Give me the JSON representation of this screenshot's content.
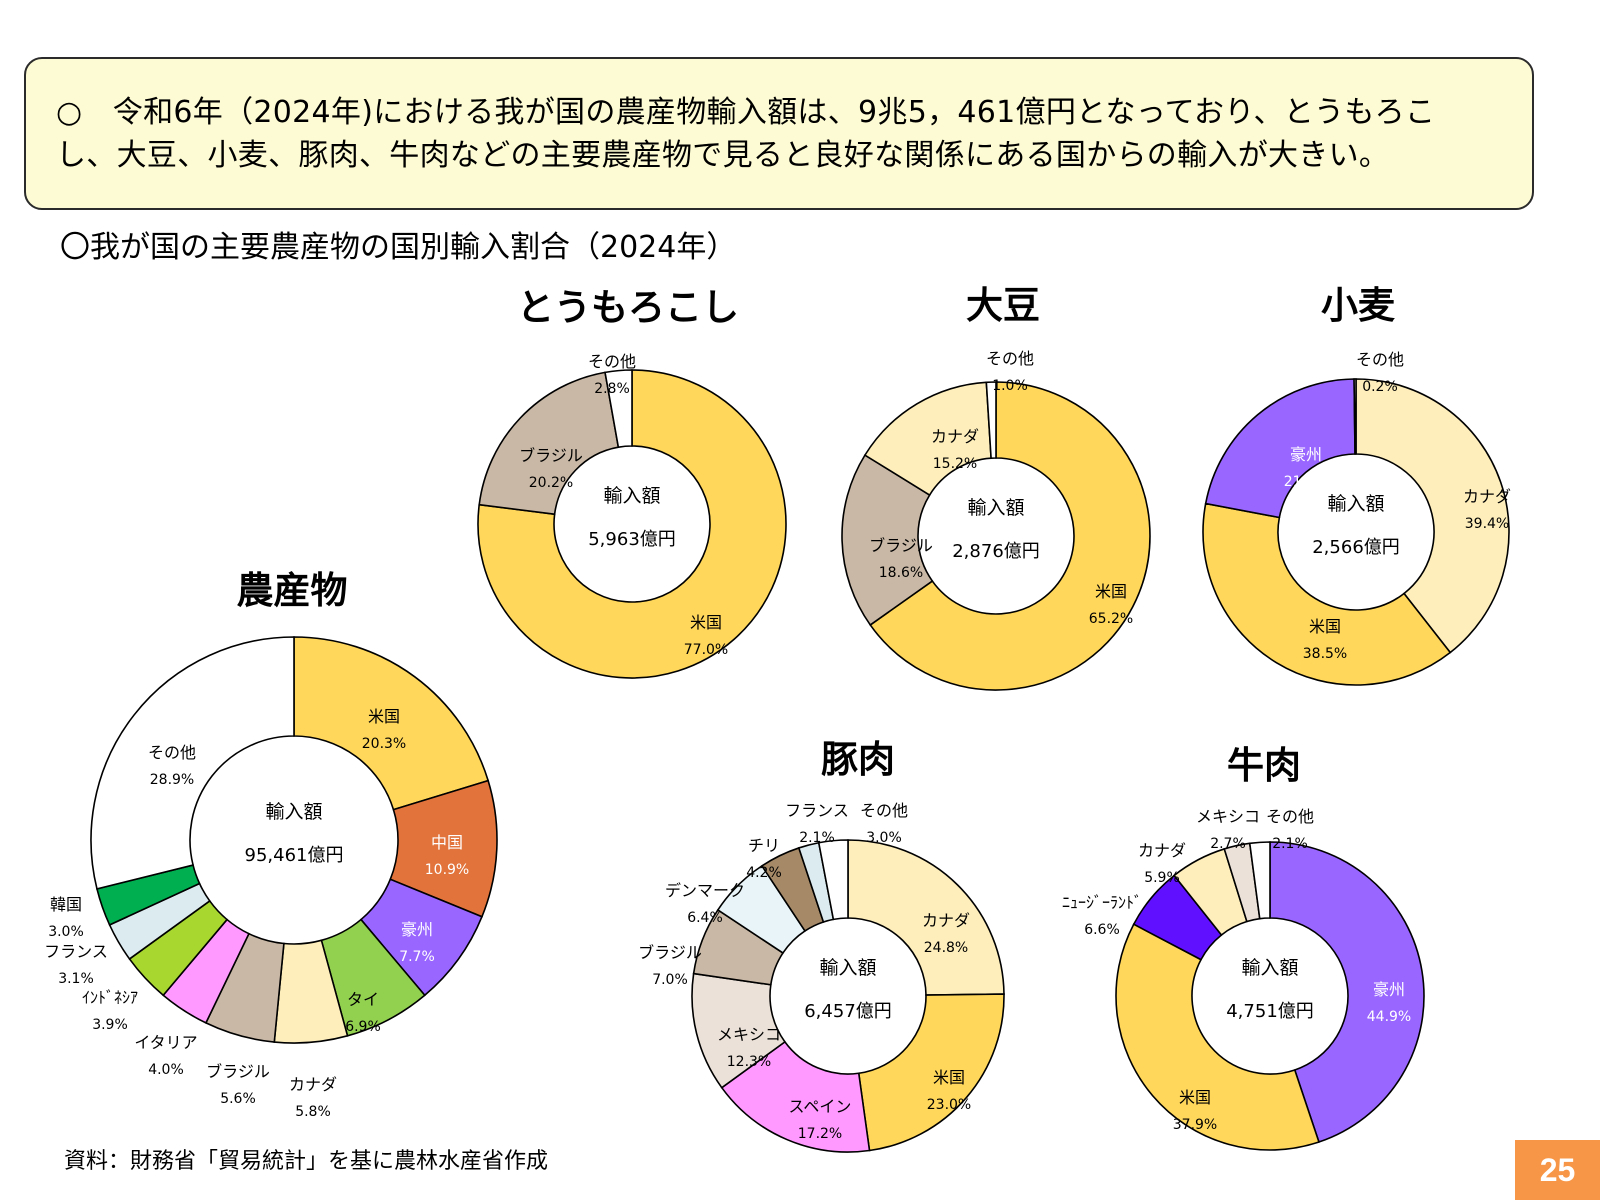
{
  "summary": {
    "line1": "○　令和6年（2024年)における我が国の農産物輸入額は、9兆5，461億円となっており、とうもろこ",
    "line2": "し、大豆、小麦、豚肉、牛肉などの主要農産物で見ると良好な関係にある国からの輸入が大きい。"
  },
  "section_heading": "〇我が国の主要農産物の国別輸入割合（2024年）",
  "source": "資料：財務省「貿易統計」を基に農林水産省作成",
  "page_number": "25",
  "colors": {
    "yellow": "#ffd75a",
    "orange": "#e1733b",
    "purple": "#9966ff",
    "green": "#92d050",
    "light_yellow": "#fdeebb",
    "tan": "#c9b8a5",
    "pink": "#ff99ff",
    "yellow_green": "#a8d830",
    "light_blue": "#dcebf0",
    "dark_green": "#00b050",
    "white": "#ffffff",
    "very_light_blue": "#e8f4f8",
    "brown": "#a68a68",
    "cream": "#ebe1d8",
    "violet": "#6010ff"
  },
  "chart_data": [
    {
      "id": "agri",
      "type": "pie",
      "title": "農産物",
      "center_label": "輸入額",
      "center_value": "95,461億円",
      "slices": [
        {
          "label": "米国",
          "value": 20.3,
          "pct": "20.3%",
          "color": "#ffd75a",
          "light_text": false
        },
        {
          "label": "中国",
          "value": 10.9,
          "pct": "10.9%",
          "color": "#e1733b",
          "light_text": true
        },
        {
          "label": "豪州",
          "value": 7.7,
          "pct": "7.7%",
          "color": "#9966ff",
          "light_text": true
        },
        {
          "label": "タイ",
          "value": 6.9,
          "pct": "6.9%",
          "color": "#92d050",
          "light_text": false
        },
        {
          "label": "カナダ",
          "value": 5.8,
          "pct": "5.8%",
          "color": "#fdeebb",
          "light_text": false
        },
        {
          "label": "ブラジル",
          "value": 5.6,
          "pct": "5.6%",
          "color": "#c9b8a5",
          "light_text": false
        },
        {
          "label": "イタリア",
          "value": 4.0,
          "pct": "4.0%",
          "color": "#ff99ff",
          "light_text": false
        },
        {
          "label": "ｲﾝﾄﾞﾈｼｱ",
          "value": 3.9,
          "pct": "3.9%",
          "color": "#a8d830",
          "light_text": false
        },
        {
          "label": "フランス",
          "value": 3.1,
          "pct": "3.1%",
          "color": "#dcebf0",
          "light_text": false
        },
        {
          "label": "韓国",
          "value": 3.0,
          "pct": "3.0%",
          "color": "#00b050",
          "light_text": false
        },
        {
          "label": "その他",
          "value": 28.9,
          "pct": "28.9%",
          "color": "#ffffff",
          "light_text": false
        }
      ]
    },
    {
      "id": "corn",
      "type": "pie",
      "title": "とうもろこし",
      "center_label": "輸入額",
      "center_value": "5,963億円",
      "slices": [
        {
          "label": "米国",
          "value": 77.0,
          "pct": "77.0%",
          "color": "#ffd75a",
          "light_text": false
        },
        {
          "label": "ブラジル",
          "value": 20.2,
          "pct": "20.2%",
          "color": "#c9b8a5",
          "light_text": false
        },
        {
          "label": "その他",
          "value": 2.8,
          "pct": "2.8%",
          "color": "#ffffff",
          "light_text": false
        }
      ]
    },
    {
      "id": "soy",
      "type": "pie",
      "title": "大豆",
      "center_label": "輸入額",
      "center_value": "2,876億円",
      "slices": [
        {
          "label": "米国",
          "value": 65.2,
          "pct": "65.2%",
          "color": "#ffd75a",
          "light_text": false
        },
        {
          "label": "ブラジル",
          "value": 18.6,
          "pct": "18.6%",
          "color": "#c9b8a5",
          "light_text": false
        },
        {
          "label": "カナダ",
          "value": 15.2,
          "pct": "15.2%",
          "color": "#fdeebb",
          "light_text": false
        },
        {
          "label": "その他",
          "value": 1.0,
          "pct": "1.0%",
          "color": "#ffffff",
          "light_text": false
        }
      ]
    },
    {
      "id": "wheat",
      "type": "pie",
      "title": "小麦",
      "center_label": "輸入額",
      "center_value": "2,566億円",
      "slices": [
        {
          "label": "カナダ",
          "value": 39.4,
          "pct": "39.4%",
          "color": "#fdeebb",
          "light_text": false
        },
        {
          "label": "米国",
          "value": 38.5,
          "pct": "38.5%",
          "color": "#ffd75a",
          "light_text": false
        },
        {
          "label": "豪州",
          "value": 21.8,
          "pct": "21.8%",
          "color": "#9966ff",
          "light_text": true
        },
        {
          "label": "その他",
          "value": 0.2,
          "pct": "0.2%",
          "color": "#ffffff",
          "light_text": false
        }
      ]
    },
    {
      "id": "pork",
      "type": "pie",
      "title": "豚肉",
      "center_label": "輸入額",
      "center_value": "6,457億円",
      "slices": [
        {
          "label": "カナダ",
          "value": 24.8,
          "pct": "24.8%",
          "color": "#fdeebb",
          "light_text": false
        },
        {
          "label": "米国",
          "value": 23.0,
          "pct": "23.0%",
          "color": "#ffd75a",
          "light_text": false
        },
        {
          "label": "スペイン",
          "value": 17.2,
          "pct": "17.2%",
          "color": "#ff99ff",
          "light_text": false
        },
        {
          "label": "メキシコ",
          "value": 12.3,
          "pct": "12.3%",
          "color": "#ebe1d8",
          "light_text": false
        },
        {
          "label": "ブラジル",
          "value": 7.0,
          "pct": "7.0%",
          "color": "#c9b8a5",
          "light_text": false
        },
        {
          "label": "デンマーク",
          "value": 6.4,
          "pct": "6.4%",
          "color": "#e8f4f8",
          "light_text": false
        },
        {
          "label": "チリ",
          "value": 4.2,
          "pct": "4.2%",
          "color": "#a68a68",
          "light_text": false
        },
        {
          "label": "フランス",
          "value": 2.1,
          "pct": "2.1%",
          "color": "#dcebf0",
          "light_text": false
        },
        {
          "label": "その他",
          "value": 3.0,
          "pct": "3.0%",
          "color": "#ffffff",
          "light_text": false
        }
      ]
    },
    {
      "id": "beef",
      "type": "pie",
      "title": "牛肉",
      "center_label": "輸入額",
      "center_value": "4,751億円",
      "slices": [
        {
          "label": "豪州",
          "value": 44.9,
          "pct": "44.9%",
          "color": "#9966ff",
          "light_text": true
        },
        {
          "label": "米国",
          "value": 37.9,
          "pct": "37.9%",
          "color": "#ffd75a",
          "light_text": false
        },
        {
          "label": "ﾆｭｰｼﾞｰﾗﾝﾄﾞ",
          "value": 6.6,
          "pct": "6.6%",
          "color": "#6010ff",
          "light_text": false
        },
        {
          "label": "カナダ",
          "value": 5.9,
          "pct": "5.9%",
          "color": "#fdeebb",
          "light_text": false
        },
        {
          "label": "メキシコ",
          "value": 2.7,
          "pct": "2.7%",
          "color": "#ebe1d8",
          "light_text": false
        },
        {
          "label": "その他",
          "value": 2.1,
          "pct": "2.1%",
          "color": "#ffffff",
          "light_text": false
        }
      ]
    }
  ]
}
